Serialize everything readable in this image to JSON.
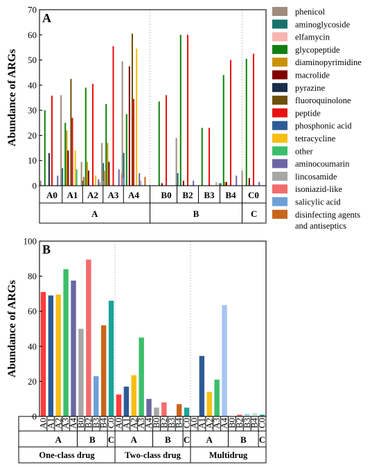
{
  "chart_data": [
    {
      "type": "bar",
      "panel_label": "A",
      "ylabel": "Abundance of ARGs",
      "ylim": [
        0,
        70
      ],
      "yticks": [
        0,
        10,
        20,
        30,
        40,
        50,
        60,
        70
      ],
      "samples": [
        "A0",
        "A1",
        "A2",
        "A3",
        "A4",
        "B0",
        "B2",
        "B3",
        "B4",
        "C0"
      ],
      "groups": [
        {
          "label": "A",
          "samples": [
            "A0",
            "A1",
            "A2",
            "A3",
            "A4"
          ]
        },
        {
          "label": "B",
          "samples": [
            "B0",
            "B2",
            "B3",
            "B4"
          ]
        },
        {
          "label": "C",
          "samples": [
            "C0"
          ]
        }
      ],
      "legend": {
        "position": "right"
      },
      "series": [
        {
          "name": "phenicol",
          "color": "#a08c7d",
          "values": [
            2,
            36,
            9.5,
            17,
            49.5,
            0,
            19,
            0,
            1,
            6
          ]
        },
        {
          "name": "aminoglycoside",
          "color": "#16716c",
          "values": [
            0,
            7,
            2,
            9,
            13,
            0,
            5,
            0,
            1,
            0
          ]
        },
        {
          "name": "elfamycin",
          "color": "#f8b5b0",
          "values": [
            0,
            0,
            0,
            0,
            0,
            0,
            0,
            0,
            0,
            0
          ]
        },
        {
          "name": "glycopeptide",
          "color": "#108010",
          "values": [
            30,
            25,
            39,
            32.5,
            28.5,
            33.5,
            60,
            23,
            44,
            50.5
          ]
        },
        {
          "name": "diaminopyrimidine",
          "color": "#c99208",
          "values": [
            0,
            22,
            9.5,
            17,
            0,
            0,
            0,
            0,
            1.5,
            0
          ]
        },
        {
          "name": "macrolide",
          "color": "#800000",
          "values": [
            0,
            14,
            6,
            9.5,
            47.5,
            1,
            2,
            0,
            1.5,
            3
          ]
        },
        {
          "name": "pyrazine",
          "color": "#192c48",
          "values": [
            13,
            0,
            0,
            0,
            0,
            0,
            0,
            0,
            0,
            0
          ]
        },
        {
          "name": "fluoroquinolone",
          "color": "#6e4f0a",
          "values": [
            0,
            42.5,
            0,
            0,
            60.5,
            0,
            0,
            0,
            0,
            0
          ]
        },
        {
          "name": "peptide",
          "color": "#e81212",
          "values": [
            35.8,
            27,
            40.5,
            55.5,
            34.5,
            36,
            60,
            23,
            50,
            52.5
          ]
        },
        {
          "name": "phosphonic acid",
          "color": "#2d5c96",
          "values": [
            0,
            0,
            0,
            0,
            0,
            0,
            0,
            0,
            0,
            0
          ]
        },
        {
          "name": "tetracycline",
          "color": "#f7be13",
          "values": [
            0,
            14,
            4,
            0,
            54.5,
            0,
            0,
            0,
            0,
            0
          ]
        },
        {
          "name": "other",
          "color": "#3cbe6a",
          "values": [
            0,
            6.5,
            0,
            0,
            0,
            0,
            0,
            0,
            0,
            0
          ]
        },
        {
          "name": "aminocoumarin",
          "color": "#6b66a3",
          "values": [
            4,
            0,
            2.5,
            6.5,
            5,
            0,
            2,
            0,
            4,
            1.5
          ]
        },
        {
          "name": "lincosamide",
          "color": "#a6a6a6",
          "values": [
            0,
            0,
            1.5,
            0,
            2,
            0,
            0,
            1.5,
            0,
            0
          ]
        },
        {
          "name": "isoniazid-like",
          "color": "#f36c6c",
          "values": [
            0,
            0,
            0,
            5,
            0,
            0,
            0,
            0,
            0,
            0
          ]
        },
        {
          "name": "salicylic acid",
          "color": "#6ea0d6",
          "values": [
            0,
            0,
            2,
            3,
            0,
            0,
            0,
            0,
            0,
            0
          ]
        },
        {
          "name": "disinfecting agents\nand antiseptics",
          "color": "#c8651c",
          "values": [
            0,
            3.5,
            6,
            0,
            3.5,
            0,
            0,
            0,
            0,
            0
          ]
        }
      ]
    },
    {
      "type": "bar",
      "panel_label": "B",
      "ylabel": "Abundance of ARGs",
      "ylim": [
        0,
        100
      ],
      "yticks": [
        0,
        20,
        40,
        60,
        80,
        100
      ],
      "samples": [
        "A0",
        "A1",
        "A2",
        "A3",
        "A4",
        "B0",
        "B2",
        "B3",
        "B4",
        "C0"
      ],
      "sample_colors": [
        "#ff3b3b",
        "#2d5b96",
        "#f7be13",
        "#3cbe6a",
        "#6b66a3",
        "#a6a6a6",
        "#f36c6c",
        "#6ea0d6",
        "#c8651c",
        "#1aa398"
      ],
      "drug_classes": [
        {
          "name": "One-class drug",
          "values": [
            71,
            69,
            69.5,
            84,
            77.5,
            50,
            89.5,
            23,
            52,
            66
          ]
        },
        {
          "name": "Two-class drug",
          "values": [
            12.5,
            17,
            23.5,
            45,
            10,
            5,
            8,
            0,
            7,
            5
          ]
        },
        {
          "name": "Multidrug",
          "values": [
            0,
            34.5,
            14,
            21,
            63.5,
            0,
            1,
            1.5,
            2,
            1
          ]
        }
      ],
      "groups": [
        "A",
        "B",
        "C"
      ],
      "multidrug_group_labels": [
        "A",
        "B",
        "C"
      ],
      "multidrug_fade_colors": [
        "#ff9b9b",
        "#2d5b96",
        "#f7be13",
        "#3cbe6a",
        "#a5c4f2",
        "#a6a6a6",
        "#f36c6c",
        "#a8d8ee",
        "#c8ead6",
        "#1aa398"
      ]
    }
  ]
}
